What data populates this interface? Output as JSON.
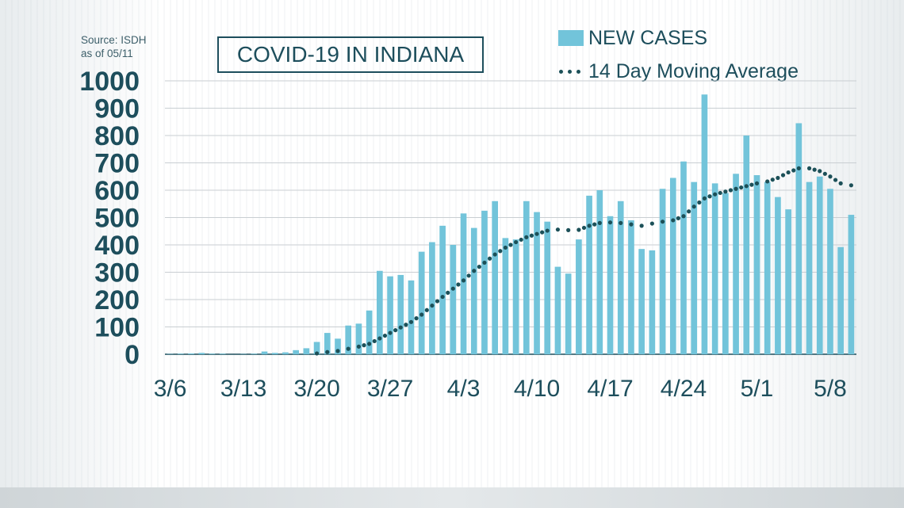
{
  "source": {
    "line1": "Source: ISDH",
    "line2": "as of 05/11"
  },
  "title": "COVID-19 IN INDIANA",
  "legend": {
    "bars": "NEW CASES",
    "line": "14 Day Moving Average"
  },
  "colors": {
    "bar": "#72c4da",
    "line": "#1c5058",
    "text": "#1d4e5c",
    "grid": "#c9ced2"
  },
  "chart_data": {
    "type": "bar",
    "title": "COVID-19 IN INDIANA",
    "xlabel": "",
    "ylabel": "",
    "ylim": [
      0,
      1000
    ],
    "yticks": [
      "0",
      "100",
      "200",
      "300",
      "400",
      "500",
      "600",
      "700",
      "800",
      "900",
      "1000"
    ],
    "xticks": [
      {
        "label": "3/6",
        "index": 0
      },
      {
        "label": "3/13",
        "index": 7
      },
      {
        "label": "3/20",
        "index": 14
      },
      {
        "label": "3/27",
        "index": 21
      },
      {
        "label": "4/3",
        "index": 28
      },
      {
        "label": "4/10",
        "index": 35
      },
      {
        "label": "4/17",
        "index": 42
      },
      {
        "label": "4/24",
        "index": 49
      },
      {
        "label": "5/1",
        "index": 56
      },
      {
        "label": "5/8",
        "index": 63
      }
    ],
    "categories": [
      "3/6",
      "3/7",
      "3/8",
      "3/9",
      "3/10",
      "3/11",
      "3/12",
      "3/13",
      "3/14",
      "3/15",
      "3/16",
      "3/17",
      "3/18",
      "3/19",
      "3/20",
      "3/21",
      "3/22",
      "3/23",
      "3/24",
      "3/25",
      "3/26",
      "3/27",
      "3/28",
      "3/29",
      "3/30",
      "3/31",
      "4/1",
      "4/2",
      "4/3",
      "4/4",
      "4/5",
      "4/6",
      "4/7",
      "4/8",
      "4/9",
      "4/10",
      "4/11",
      "4/12",
      "4/13",
      "4/14",
      "4/15",
      "4/16",
      "4/17",
      "4/18",
      "4/19",
      "4/20",
      "4/21",
      "4/22",
      "4/23",
      "4/24",
      "4/25",
      "4/26",
      "4/27",
      "4/28",
      "4/29",
      "4/30",
      "5/1",
      "5/2",
      "5/3",
      "5/4",
      "5/5",
      "5/6",
      "5/7",
      "5/8",
      "5/9",
      "5/10"
    ],
    "series": [
      {
        "name": "NEW CASES",
        "type": "bar",
        "values": [
          1,
          2,
          3,
          5,
          2,
          2,
          0,
          1,
          2,
          10,
          5,
          7,
          15,
          22,
          45,
          78,
          57,
          105,
          112,
          160,
          305,
          285,
          290,
          270,
          375,
          410,
          470,
          400,
          515,
          462,
          525,
          560,
          425,
          420,
          560,
          520,
          485,
          320,
          295,
          420,
          580,
          600,
          505,
          560,
          490,
          385,
          380,
          605,
          645,
          705,
          630,
          950,
          625,
          590,
          660,
          800,
          655,
          630,
          575,
          530,
          845,
          630,
          650,
          605,
          392,
          510
        ]
      },
      {
        "name": "14 Day Moving Average",
        "type": "line",
        "values": [
          null,
          null,
          null,
          null,
          null,
          null,
          null,
          null,
          null,
          null,
          null,
          null,
          null,
          null,
          3,
          8,
          12,
          20,
          28,
          38,
          58,
          78,
          98,
          118,
          145,
          178,
          210,
          240,
          270,
          305,
          335,
          365,
          390,
          410,
          428,
          440,
          452,
          456,
          454,
          455,
          470,
          480,
          482,
          480,
          475,
          470,
          478,
          485,
          490,
          505,
          540,
          570,
          585,
          595,
          605,
          615,
          625,
          632,
          645,
          665,
          680,
          680,
          670,
          650,
          625,
          618
        ]
      }
    ]
  }
}
